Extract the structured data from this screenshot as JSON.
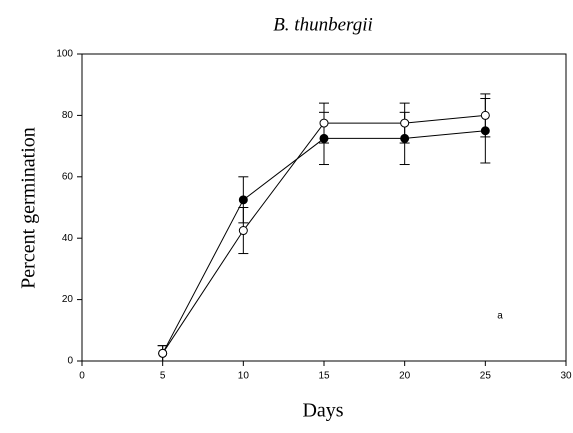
{
  "chart_data": {
    "type": "line",
    "title": "B. thunbergii",
    "x_label": "Days",
    "y_label": "Percent germination",
    "annotation": "a",
    "x": [
      5,
      10,
      15,
      20,
      25
    ],
    "series": [
      {
        "color": "#000000",
        "marker_fill": "#000000",
        "values": [
          2.5,
          52.5,
          72.5,
          72.5,
          75
        ],
        "errors": [
          2.5,
          7.5,
          8.5,
          8.5,
          10.5
        ]
      },
      {
        "color": "#000000",
        "marker_fill": "#ffffff",
        "values": [
          2.5,
          42.5,
          77.5,
          77.5,
          80
        ],
        "errors": [
          2.5,
          7.5,
          6.5,
          6.5,
          7
        ]
      }
    ],
    "xlim": [
      0,
      30
    ],
    "xticks": [
      0,
      5,
      10,
      15,
      20,
      25,
      30
    ],
    "ylim": [
      0,
      100
    ],
    "yticks": [
      0,
      20,
      40,
      60,
      80,
      100
    ]
  }
}
